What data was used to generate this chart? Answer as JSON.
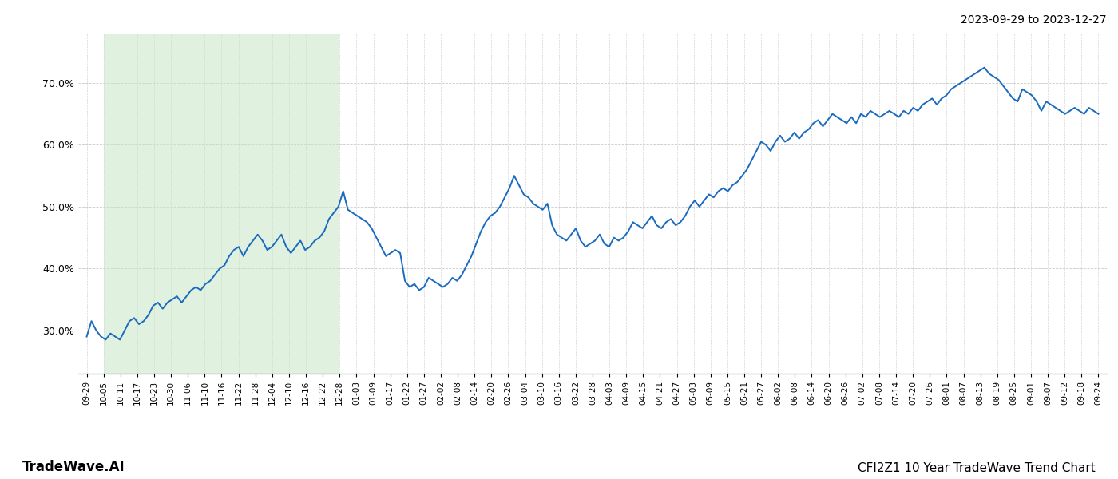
{
  "title_bottom_right": "CFI2Z1 10 Year TradeWave Trend Chart",
  "title_bottom_left": "TradeWave.AI",
  "title_top_right": "2023-09-29 to 2023-12-27",
  "line_color": "#1a6bbf",
  "line_width": 1.4,
  "shade_color": "#c8e6c8",
  "shade_alpha": 0.55,
  "background_color": "#ffffff",
  "grid_color": "#bbbbbb",
  "ylim": [
    23,
    78
  ],
  "yticks": [
    30.0,
    40.0,
    50.0,
    60.0,
    70.0
  ],
  "x_labels": [
    "09-29",
    "10-05",
    "10-11",
    "10-17",
    "10-23",
    "10-30",
    "11-06",
    "11-10",
    "11-16",
    "11-22",
    "11-28",
    "12-04",
    "12-10",
    "12-16",
    "12-22",
    "12-28",
    "01-03",
    "01-09",
    "01-17",
    "01-22",
    "01-27",
    "02-02",
    "02-08",
    "02-14",
    "02-20",
    "02-26",
    "03-04",
    "03-10",
    "03-16",
    "03-22",
    "03-28",
    "04-03",
    "04-09",
    "04-15",
    "04-21",
    "04-27",
    "05-03",
    "05-09",
    "05-15",
    "05-21",
    "05-27",
    "06-02",
    "06-08",
    "06-14",
    "06-20",
    "06-26",
    "07-02",
    "07-08",
    "07-14",
    "07-20",
    "07-26",
    "08-01",
    "08-07",
    "08-13",
    "08-19",
    "08-25",
    "09-01",
    "09-07",
    "09-12",
    "09-18",
    "09-24"
  ],
  "shade_start_label": "10-05",
  "shade_end_label": "12-28",
  "y_values": [
    29.0,
    31.5,
    30.0,
    29.0,
    28.5,
    29.5,
    29.0,
    28.5,
    30.0,
    31.5,
    32.0,
    31.0,
    31.5,
    32.5,
    34.0,
    34.5,
    33.5,
    34.5,
    35.0,
    35.5,
    34.5,
    35.5,
    36.5,
    37.0,
    36.5,
    37.5,
    38.0,
    39.0,
    40.0,
    40.5,
    42.0,
    43.0,
    43.5,
    42.0,
    43.5,
    44.5,
    45.5,
    44.5,
    43.0,
    43.5,
    44.5,
    45.5,
    43.5,
    42.5,
    43.5,
    44.5,
    43.0,
    43.5,
    44.5,
    45.0,
    46.0,
    48.0,
    49.0,
    50.0,
    52.5,
    49.5,
    49.0,
    48.5,
    48.0,
    47.5,
    46.5,
    45.0,
    43.5,
    42.0,
    42.5,
    43.0,
    42.5,
    38.0,
    37.0,
    37.5,
    36.5,
    37.0,
    38.5,
    38.0,
    37.5,
    37.0,
    37.5,
    38.5,
    38.0,
    39.0,
    40.5,
    42.0,
    44.0,
    46.0,
    47.5,
    48.5,
    49.0,
    50.0,
    51.5,
    53.0,
    55.0,
    53.5,
    52.0,
    51.5,
    50.5,
    50.0,
    49.5,
    50.5,
    47.0,
    45.5,
    45.0,
    44.5,
    45.5,
    46.5,
    44.5,
    43.5,
    44.0,
    44.5,
    45.5,
    44.0,
    43.5,
    45.0,
    44.5,
    45.0,
    46.0,
    47.5,
    47.0,
    46.5,
    47.5,
    48.5,
    47.0,
    46.5,
    47.5,
    48.0,
    47.0,
    47.5,
    48.5,
    50.0,
    51.0,
    50.0,
    51.0,
    52.0,
    51.5,
    52.5,
    53.0,
    52.5,
    53.5,
    54.0,
    55.0,
    56.0,
    57.5,
    59.0,
    60.5,
    60.0,
    59.0,
    60.5,
    61.5,
    60.5,
    61.0,
    62.0,
    61.0,
    62.0,
    62.5,
    63.5,
    64.0,
    63.0,
    64.0,
    65.0,
    64.5,
    64.0,
    63.5,
    64.5,
    63.5,
    65.0,
    64.5,
    65.5,
    65.0,
    64.5,
    65.0,
    65.5,
    65.0,
    64.5,
    65.5,
    65.0,
    66.0,
    65.5,
    66.5,
    67.0,
    67.5,
    66.5,
    67.5,
    68.0,
    69.0,
    69.5,
    70.0,
    70.5,
    71.0,
    71.5,
    72.0,
    72.5,
    71.5,
    71.0,
    70.5,
    69.5,
    68.5,
    67.5,
    67.0,
    69.0,
    68.5,
    68.0,
    67.0,
    65.5,
    67.0,
    66.5,
    66.0,
    65.5,
    65.0,
    65.5,
    66.0,
    65.5,
    65.0,
    66.0,
    65.5,
    65.0
  ]
}
